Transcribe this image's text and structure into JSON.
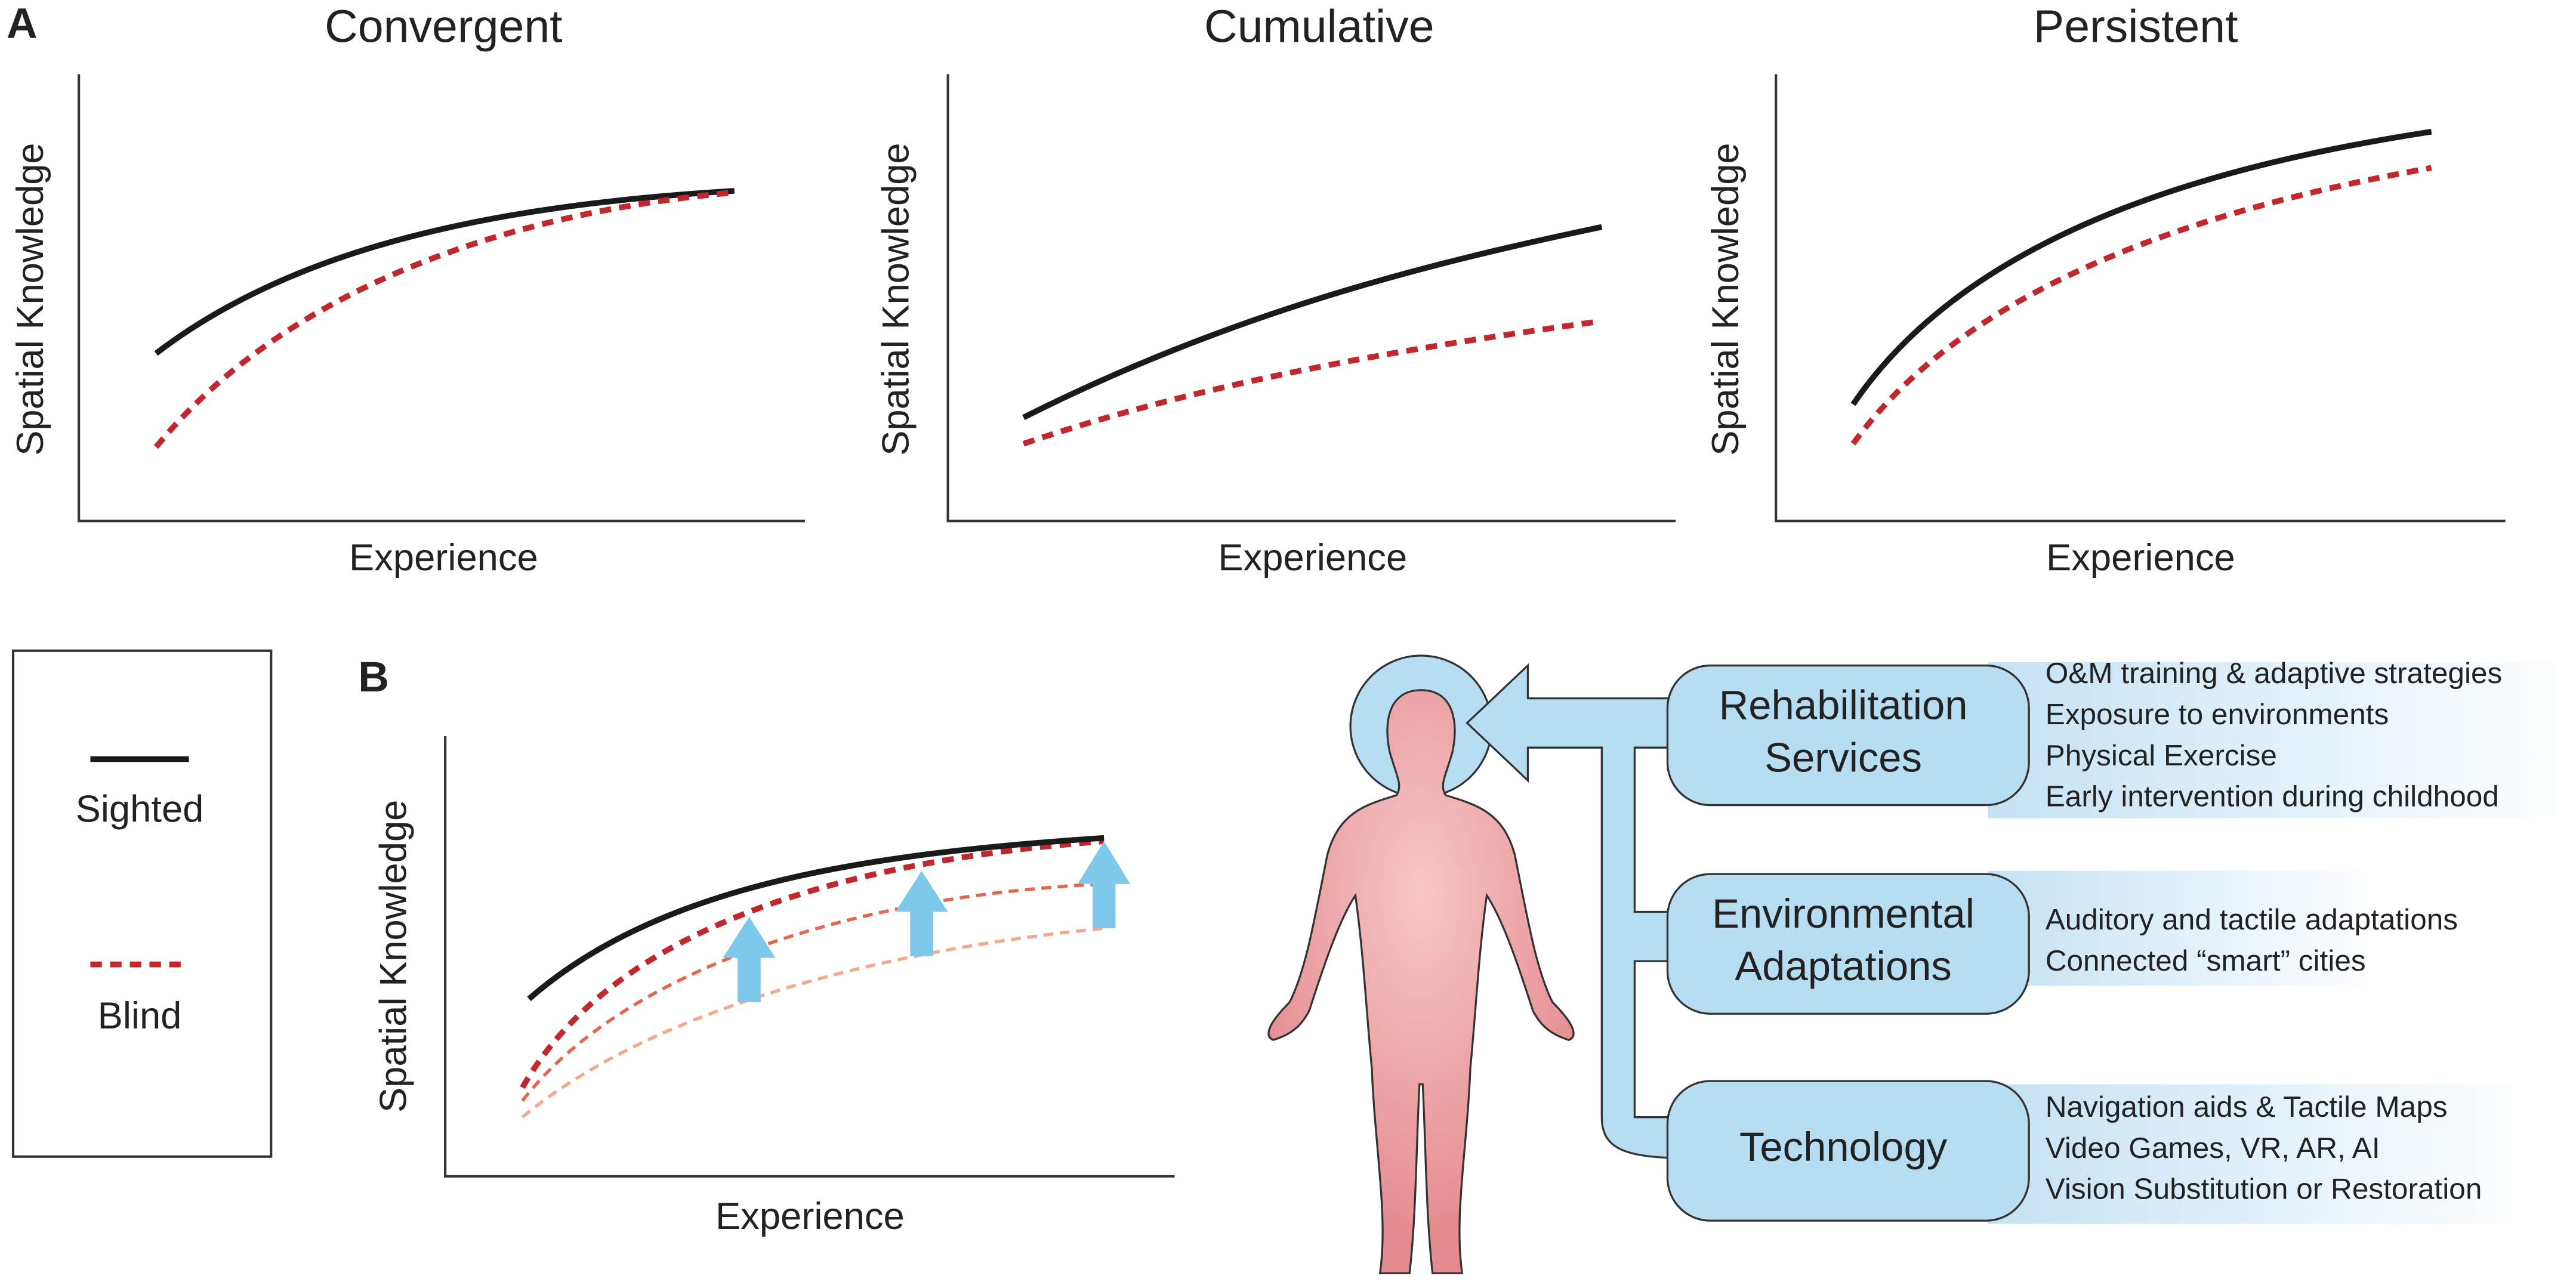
{
  "panel_a": {
    "label": "A",
    "plots": [
      {
        "title": "Convergent",
        "y_label": "Spatial Knowledge",
        "x_label": "Experience"
      },
      {
        "title": "Cumulative",
        "y_label": "Spatial Knowledge",
        "x_label": "Experience"
      },
      {
        "title": "Persistent",
        "y_label": "Spatial Knowledge",
        "x_label": "Experience"
      }
    ]
  },
  "legend": {
    "items": [
      "Sighted",
      "Blind"
    ]
  },
  "panel_b": {
    "label": "B",
    "y_label": "Spatial Knowledge",
    "x_label": "Experience",
    "interventions": [
      {
        "title_lines": [
          "Rehabilitation",
          "Services"
        ],
        "items": [
          "O&M training & adaptive strategies",
          "Exposure to environments",
          "Physical Exercise",
          "Early intervention during childhood"
        ]
      },
      {
        "title_lines": [
          "Environmental",
          "Adaptations"
        ],
        "items": [
          "Auditory and tactile adaptations",
          "Connected “smart” cities"
        ]
      },
      {
        "title_lines": [
          "Technology"
        ],
        "items": [
          "Navigation aids & Tactile Maps",
          "Video Games, VR, AR, AI",
          "Vision Substitution or Restoration"
        ]
      }
    ]
  }
}
